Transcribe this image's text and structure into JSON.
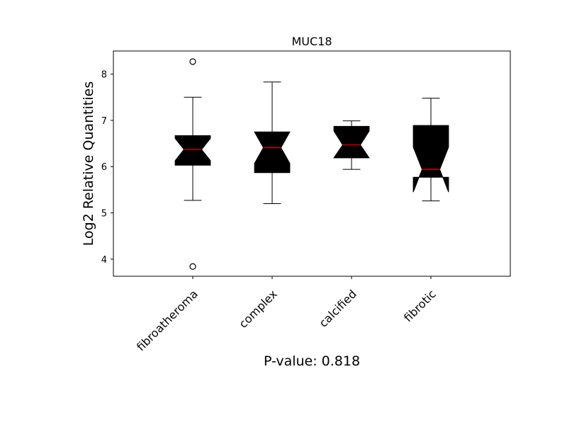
{
  "chart_data": {
    "type": "box",
    "title": "MUC18",
    "ylabel": "Log2 Relative Quantities",
    "xlabel": "",
    "ylim": [
      3.63,
      8.5
    ],
    "yticks": [
      4,
      5,
      6,
      7,
      8
    ],
    "notched": true,
    "box_color": "#000000",
    "median_color": "#ff0000",
    "categories": [
      "fibroatheroma",
      "complex",
      "calcified",
      "fibrotic"
    ],
    "boxes": [
      {
        "category": "fibroatheroma",
        "whisker_low": 5.27,
        "q1": 6.03,
        "median": 6.37,
        "q3": 6.67,
        "whisker_high": 7.5,
        "notch_low": 6.13,
        "notch_high": 6.61,
        "outliers": [
          8.27,
          3.84
        ]
      },
      {
        "category": "complex",
        "whisker_low": 5.2,
        "q1": 5.87,
        "median": 6.41,
        "q3": 6.75,
        "whisker_high": 7.83,
        "notch_low": 6.07,
        "notch_high": 6.75,
        "outliers": []
      },
      {
        "category": "calcified",
        "whisker_low": 5.94,
        "q1": 6.19,
        "median": 6.47,
        "q3": 6.87,
        "whisker_high": 6.99,
        "notch_low": 6.19,
        "notch_high": 6.77,
        "outliers": []
      },
      {
        "category": "fibrotic",
        "whisker_low": 5.26,
        "q1": 5.77,
        "median": 5.94,
        "q3": 6.89,
        "whisker_high": 7.48,
        "notch_low": 5.45,
        "notch_high": 6.42,
        "outliers": []
      }
    ]
  },
  "footer": {
    "pvalue_text": "P-value: 0.818"
  }
}
